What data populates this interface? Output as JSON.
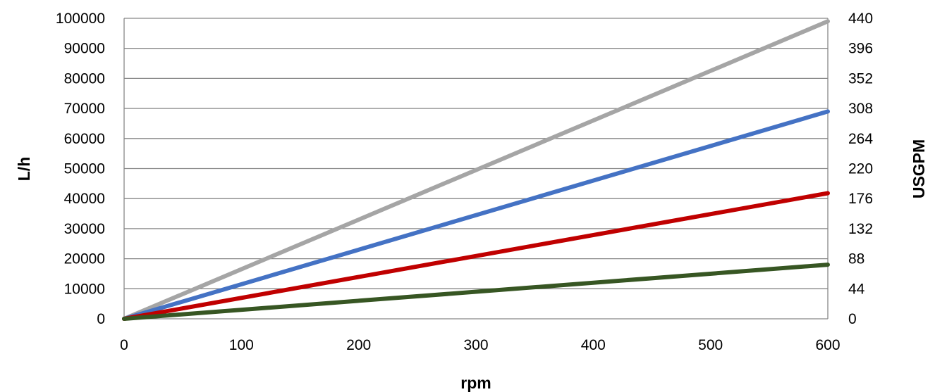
{
  "chart_data": {
    "type": "line",
    "title": "",
    "xlabel": "rpm",
    "ylabel": "L/h",
    "y2label": "USGPM",
    "xlim": [
      0,
      600
    ],
    "ylim": [
      0,
      100000
    ],
    "y2lim": [
      0,
      440
    ],
    "x_ticks": [
      "0",
      "100",
      "200",
      "300",
      "400",
      "500",
      "600"
    ],
    "y_ticks": [
      "0",
      "10000",
      "20000",
      "30000",
      "40000",
      "50000",
      "60000",
      "70000",
      "80000",
      "90000",
      "100000"
    ],
    "y2_ticks": [
      "0",
      "44",
      "88",
      "132",
      "176",
      "220",
      "264",
      "308",
      "352",
      "396",
      "440"
    ],
    "grid": "horizontal",
    "legend": "none",
    "series": [
      {
        "color": "#a5a5a5",
        "x": [
          0,
          600
        ],
        "y": [
          0,
          99000
        ]
      },
      {
        "color": "#4472c4",
        "x": [
          0,
          600
        ],
        "y": [
          0,
          69000
        ]
      },
      {
        "color": "#c00000",
        "x": [
          0,
          600
        ],
        "y": [
          0,
          41800
        ]
      },
      {
        "color": "#375623",
        "x": [
          0,
          600
        ],
        "y": [
          0,
          18000
        ]
      }
    ]
  }
}
